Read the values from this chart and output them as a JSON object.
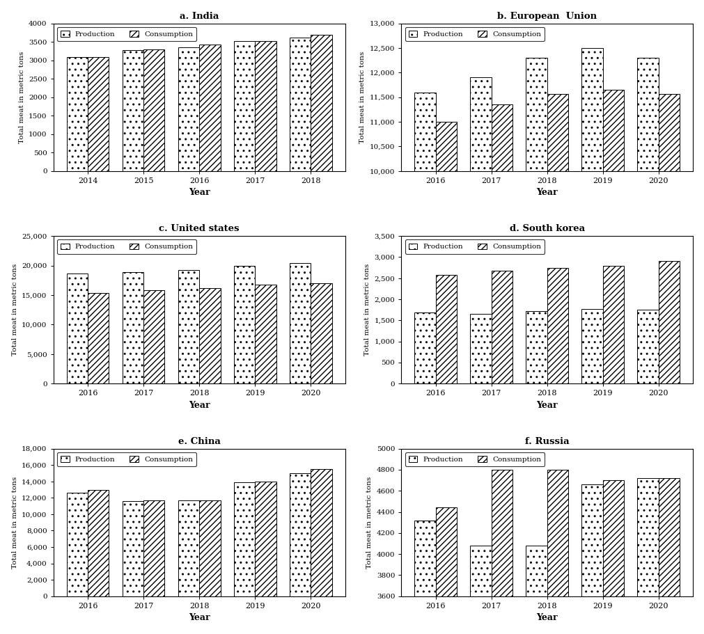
{
  "subplots": [
    {
      "title": "a. India",
      "years": [
        "2014",
        "2015",
        "2016",
        "2017",
        "2018"
      ],
      "production": [
        3080,
        3280,
        3350,
        3520,
        3620
      ],
      "consumption": [
        3080,
        3290,
        3430,
        3530,
        3700
      ],
      "ylim": [
        0,
        4000
      ],
      "yticks": [
        0,
        500,
        1000,
        1500,
        2000,
        2500,
        3000,
        3500,
        4000
      ],
      "ytick_labels": [
        "0",
        "500",
        "1000",
        "1500",
        "2000",
        "2500",
        "3000",
        "3500",
        "4000"
      ]
    },
    {
      "title": "b. European  Union",
      "years": [
        "2016",
        "2017",
        "2018",
        "2019",
        "2020"
      ],
      "production": [
        11600,
        11900,
        12300,
        12500,
        12300
      ],
      "consumption": [
        11000,
        11350,
        11560,
        11650,
        11560
      ],
      "ylim": [
        10000,
        13000
      ],
      "yticks": [
        10000,
        10500,
        11000,
        11500,
        12000,
        12500,
        13000
      ],
      "ytick_labels": [
        "10,000",
        "10,500",
        "11,000",
        "11,500",
        "12,000",
        "12,500",
        "13,000"
      ]
    },
    {
      "title": "c. United states",
      "years": [
        "2016",
        "2017",
        "2018",
        "2019",
        "2020"
      ],
      "production": [
        18700,
        18900,
        19200,
        20000,
        20400
      ],
      "consumption": [
        15400,
        15800,
        16200,
        16800,
        17000
      ],
      "ylim": [
        0,
        25000
      ],
      "yticks": [
        0,
        5000,
        10000,
        15000,
        20000,
        25000
      ],
      "ytick_labels": [
        "0",
        "5,000",
        "10,000",
        "15,000",
        "20,000",
        "25,000"
      ]
    },
    {
      "title": "d. South korea",
      "years": [
        "2016",
        "2017",
        "2018",
        "2019",
        "2020"
      ],
      "production": [
        1680,
        1660,
        1720,
        1770,
        1760
      ],
      "consumption": [
        2580,
        2680,
        2750,
        2800,
        2900
      ],
      "ylim": [
        0,
        3500
      ],
      "yticks": [
        0,
        500,
        1000,
        1500,
        2000,
        2500,
        3000,
        3500
      ],
      "ytick_labels": [
        "0",
        "500",
        "1,000",
        "1,500",
        "2,000",
        "2,500",
        "3,000",
        "3,500"
      ]
    },
    {
      "title": "e. China",
      "years": [
        "2016",
        "2017",
        "2018",
        "2019",
        "2020"
      ],
      "production": [
        12600,
        11600,
        11700,
        13900,
        15000
      ],
      "consumption": [
        13000,
        11700,
        11700,
        14000,
        15500
      ],
      "ylim": [
        0,
        18000
      ],
      "yticks": [
        0,
        2000,
        4000,
        6000,
        8000,
        10000,
        12000,
        14000,
        16000,
        18000
      ],
      "ytick_labels": [
        "0",
        "2,000",
        "4,000",
        "6,000",
        "8,000",
        "10,000",
        "12,000",
        "14,000",
        "16,000",
        "18,000"
      ]
    },
    {
      "title": "f. Russia",
      "years": [
        "2016",
        "2017",
        "2018",
        "2019",
        "2020"
      ],
      "production": [
        4320,
        4080,
        4080,
        4660,
        4720
      ],
      "consumption": [
        4440,
        4800,
        4800,
        4700,
        4720
      ],
      "ylim": [
        3600,
        5000
      ],
      "yticks": [
        3600,
        3800,
        4000,
        4200,
        4400,
        4600,
        4800,
        5000
      ],
      "ytick_labels": [
        "3600",
        "3800",
        "4000",
        "4200",
        "4400",
        "4600",
        "4800",
        "5000"
      ]
    }
  ],
  "ylabel": "Total meat in metric tons",
  "xlabel": "Year",
  "prod_hatch": "..",
  "cons_hatch": "////",
  "prod_color": "white",
  "cons_color": "white",
  "bar_edge_color": "black",
  "bar_width": 0.38
}
